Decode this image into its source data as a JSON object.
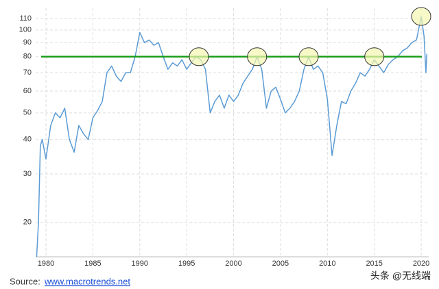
{
  "chart_data": {
    "type": "line",
    "log_scale": true,
    "grid": true,
    "x": [
      1979.0,
      1979.2,
      1979.4,
      1979.6,
      1980.0,
      1980.5,
      1981.0,
      1981.5,
      1982.0,
      1982.5,
      1983.0,
      1983.5,
      1984.0,
      1984.5,
      1985.0,
      1985.5,
      1986.0,
      1986.5,
      1987.0,
      1987.5,
      1988.0,
      1988.5,
      1989.0,
      1989.5,
      1990.0,
      1990.5,
      1991.0,
      1991.5,
      1992.0,
      1992.5,
      1993.0,
      1993.5,
      1994.0,
      1994.5,
      1995.0,
      1995.5,
      1996.0,
      1996.5,
      1997.0,
      1997.5,
      1998.0,
      1998.5,
      1999.0,
      1999.5,
      2000.0,
      2000.5,
      2001.0,
      2001.5,
      2002.0,
      2002.5,
      2003.0,
      2003.5,
      2004.0,
      2004.5,
      2005.0,
      2005.5,
      2006.0,
      2006.5,
      2007.0,
      2007.5,
      2008.0,
      2008.5,
      2009.0,
      2009.5,
      2010.0,
      2010.5,
      2011.0,
      2011.5,
      2012.0,
      2012.5,
      2013.0,
      2013.5,
      2014.0,
      2014.5,
      2015.0,
      2015.5,
      2016.0,
      2016.5,
      2017.0,
      2017.5,
      2018.0,
      2018.5,
      2019.0,
      2019.5,
      2020.0,
      2020.3,
      2020.5,
      2020.6
    ],
    "series": [
      {
        "color": "#5b9bd5",
        "values": [
          15,
          20,
          38,
          40,
          34,
          45,
          50,
          48,
          52,
          40,
          36,
          45,
          42,
          40,
          48,
          51,
          55,
          70,
          74,
          68,
          65,
          70,
          70,
          80,
          98,
          90,
          92,
          88,
          90,
          80,
          72,
          76,
          74,
          78,
          72,
          76,
          80,
          78,
          72,
          50,
          55,
          58,
          52,
          58,
          55,
          58,
          64,
          68,
          72,
          80,
          72,
          52,
          60,
          62,
          56,
          50,
          52,
          55,
          60,
          72,
          80,
          72,
          74,
          70,
          56,
          35,
          45,
          55,
          54,
          60,
          64,
          70,
          68,
          72,
          78,
          74,
          70,
          75,
          78,
          80,
          84,
          86,
          90,
          92,
          112,
          95,
          70,
          82
        ]
      }
    ],
    "xlim": [
      1978.9,
      2020.8
    ],
    "xticks": [
      1980,
      1985,
      1990,
      1995,
      2000,
      2005,
      2010,
      2015,
      2020
    ],
    "ylim": [
      15,
      120
    ],
    "yticks": [
      20,
      30,
      40,
      50,
      60,
      70,
      80,
      90,
      100,
      110
    ],
    "reference_line": {
      "value": 80,
      "color": "#1a9e1a"
    },
    "highlights": [
      {
        "x": 1996.3,
        "y": 80
      },
      {
        "x": 2002.5,
        "y": 80
      },
      {
        "x": 2008.0,
        "y": 80
      },
      {
        "x": 2015.0,
        "y": 80
      },
      {
        "x": 2020.0,
        "y": 112
      }
    ],
    "highlight_color": "#f5f7b0"
  },
  "source_label": "Source:",
  "source_link": "www.macrotrends.net",
  "watermark": "头条 @无线端"
}
